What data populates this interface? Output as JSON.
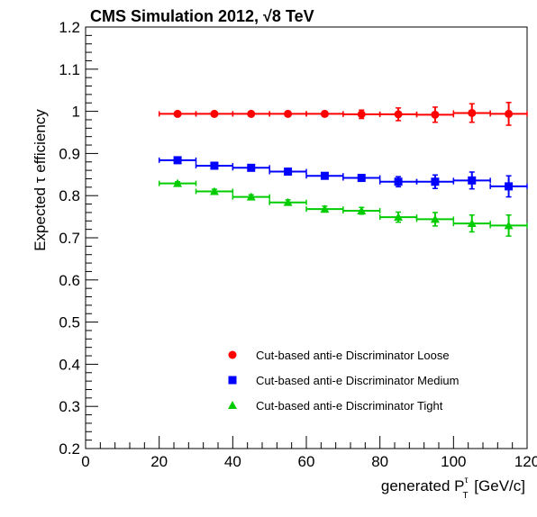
{
  "chart_data": {
    "type": "scatter",
    "title": "CMS Simulation 2012, √8 TeV",
    "xlabel_main": "generated P",
    "xlabel_sub": "T",
    "xlabel_sup": "τ",
    "xlabel_unit": " [GeV/c]",
    "ylabel": "Expected τ efficiency",
    "xlim": [
      0,
      120
    ],
    "ylim": [
      0.2,
      1.2
    ],
    "xticks": [
      0,
      20,
      40,
      60,
      80,
      100,
      120
    ],
    "yticks": [
      0.2,
      0.3,
      0.4,
      0.5,
      0.6,
      0.7,
      0.8,
      0.9,
      1,
      1.1,
      1.2
    ],
    "ytick_labels": [
      "0.2",
      "0.3",
      "0.4",
      "0.5",
      "0.6",
      "0.7",
      "0.8",
      "0.9",
      "1",
      "1.1",
      "1.2"
    ],
    "grid": false,
    "legend_position": "bottom-right",
    "series": [
      {
        "name": "Cut-based anti-e Discriminator Loose",
        "color": "#ff0000",
        "marker": "circle",
        "x": [
          25,
          35,
          45,
          55,
          65,
          75,
          85,
          95,
          105,
          115
        ],
        "x_lo": [
          20,
          30,
          40,
          50,
          60,
          70,
          80,
          90,
          100,
          110
        ],
        "x_hi": [
          30,
          40,
          50,
          60,
          70,
          80,
          90,
          100,
          110,
          120
        ],
        "y": [
          0.994,
          0.994,
          0.994,
          0.994,
          0.994,
          0.993,
          0.993,
          0.992,
          0.996,
          0.994
        ],
        "yerr": [
          0.004,
          0.004,
          0.004,
          0.005,
          0.005,
          0.01,
          0.015,
          0.018,
          0.022,
          0.027
        ]
      },
      {
        "name": "Cut-based anti-e Discriminator Medium",
        "color": "#0000ff",
        "marker": "square",
        "x": [
          25,
          35,
          45,
          55,
          65,
          75,
          85,
          95,
          105,
          115
        ],
        "x_lo": [
          20,
          30,
          40,
          50,
          60,
          70,
          80,
          90,
          100,
          110
        ],
        "x_hi": [
          30,
          40,
          50,
          60,
          70,
          80,
          90,
          100,
          110,
          120
        ],
        "y": [
          0.884,
          0.871,
          0.866,
          0.857,
          0.847,
          0.842,
          0.833,
          0.833,
          0.836,
          0.822
        ],
        "yerr": [
          0.004,
          0.005,
          0.005,
          0.006,
          0.007,
          0.008,
          0.012,
          0.016,
          0.02,
          0.025
        ]
      },
      {
        "name": "Cut-based anti-e Discriminator Tight",
        "color": "#00cc00",
        "marker": "triangle",
        "x": [
          25,
          35,
          45,
          55,
          65,
          75,
          85,
          95,
          105,
          115
        ],
        "x_lo": [
          20,
          30,
          40,
          50,
          60,
          70,
          80,
          90,
          100,
          110
        ],
        "x_hi": [
          30,
          40,
          50,
          60,
          70,
          80,
          90,
          100,
          110,
          120
        ],
        "y": [
          0.829,
          0.81,
          0.797,
          0.784,
          0.768,
          0.764,
          0.749,
          0.744,
          0.734,
          0.729
        ],
        "yerr": [
          0.004,
          0.005,
          0.005,
          0.006,
          0.007,
          0.008,
          0.012,
          0.016,
          0.02,
          0.025
        ]
      }
    ]
  }
}
